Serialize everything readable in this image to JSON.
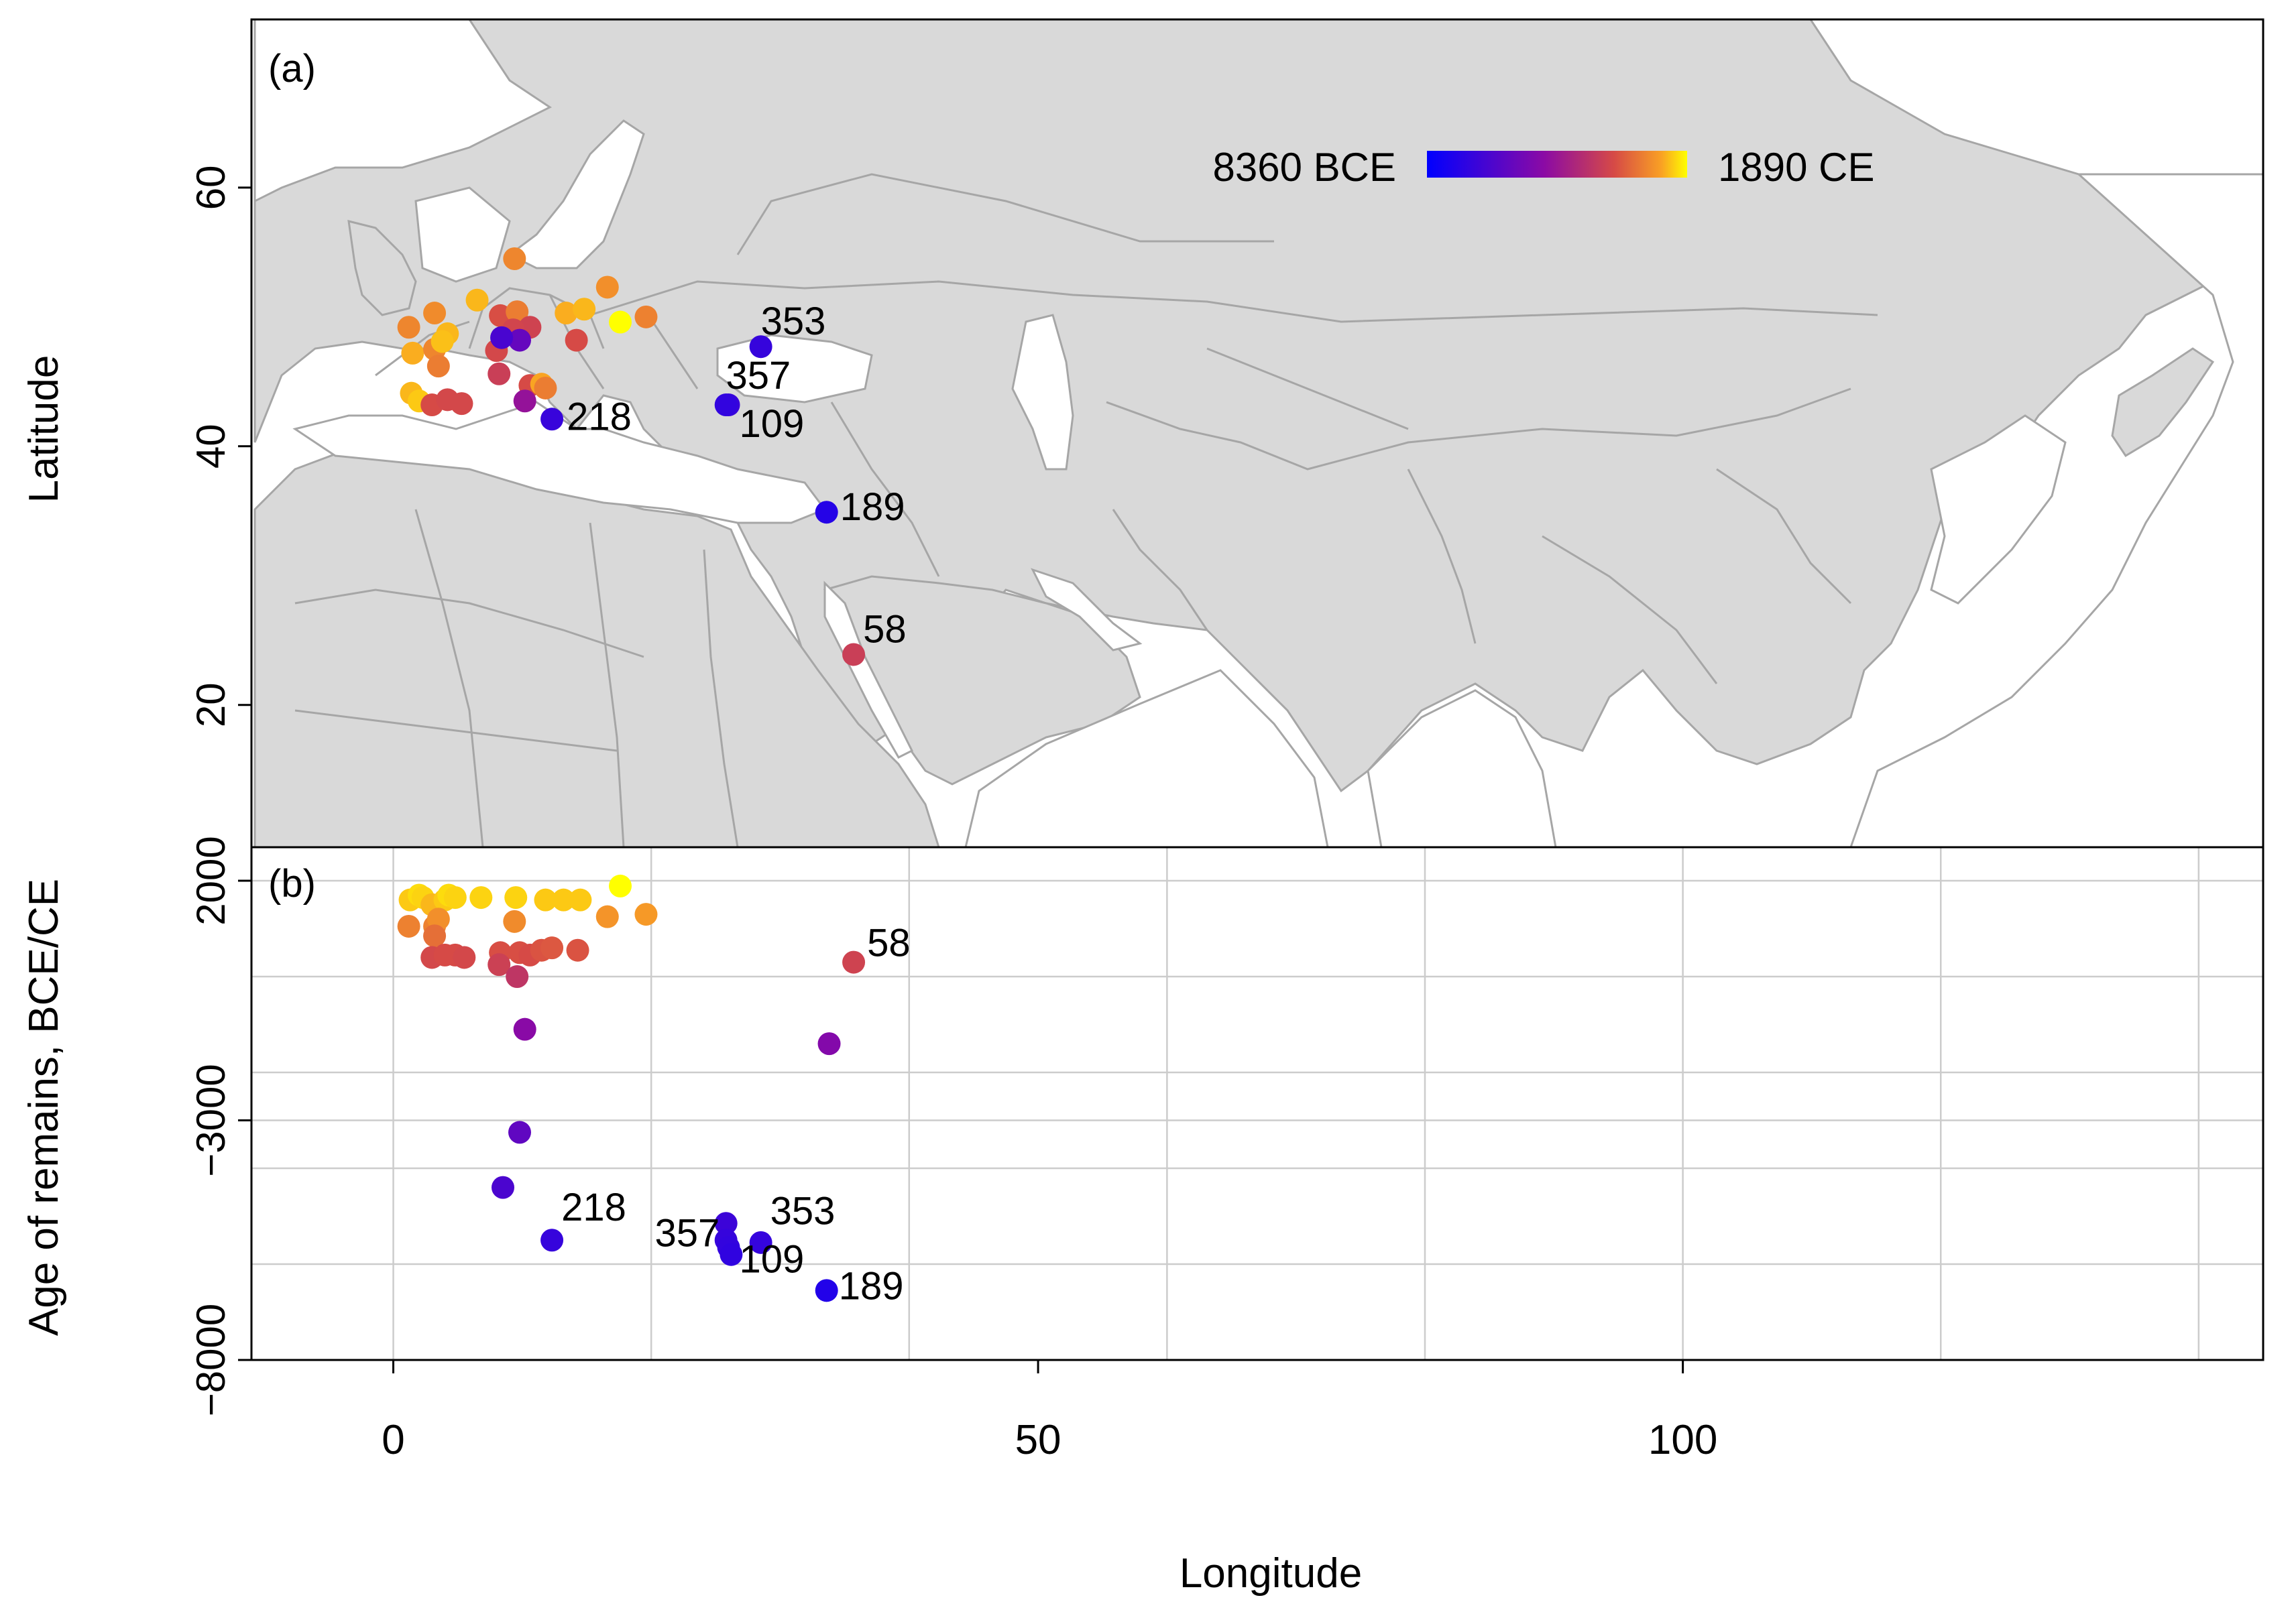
{
  "chart_data": [
    {
      "panel": "(a)",
      "type": "scatter",
      "subtype": "map",
      "ylabel": "Latitude",
      "y_ticks": [
        20,
        40,
        60
      ],
      "xlim": [
        -11,
        145
      ],
      "ylim": [
        9,
        73
      ],
      "color_legend": {
        "min_label": "8360 BCE",
        "max_label": "1890 CE",
        "colors": [
          "#0000ff",
          "#8b0aa5",
          "#d64a46",
          "#f9a024",
          "#ffff00"
        ]
      },
      "labels": [
        {
          "text": "353",
          "lon": 28.5,
          "lat": 47.7
        },
        {
          "text": "357",
          "lon": 26.0,
          "lat": 43.2
        },
        {
          "text": "109",
          "lon": 26.0,
          "lat": 43.2
        },
        {
          "text": "218",
          "lon": 12.3,
          "lat": 42.1
        },
        {
          "text": "189",
          "lon": 33.6,
          "lat": 34.9
        },
        {
          "text": "58",
          "lon": 35.7,
          "lat": 23.9
        }
      ],
      "points": [
        {
          "lon": 1.2,
          "lat": 49.2,
          "year": 1100
        },
        {
          "lon": 3.2,
          "lat": 50.3,
          "year": 1150
        },
        {
          "lon": 4.2,
          "lat": 48.7,
          "year": 1500
        },
        {
          "lon": 1.5,
          "lat": 47.2,
          "year": 1450
        },
        {
          "lon": 3.2,
          "lat": 47.5,
          "year": 1100
        },
        {
          "lon": 3.5,
          "lat": 46.2,
          "year": 1000
        },
        {
          "lon": 3.8,
          "lat": 48.1,
          "year": 1550
        },
        {
          "lon": 1.4,
          "lat": 44.1,
          "year": 1500
        },
        {
          "lon": 2.0,
          "lat": 43.5,
          "year": 1600
        },
        {
          "lon": 3.0,
          "lat": 43.2,
          "year": 450
        },
        {
          "lon": 4.2,
          "lat": 43.6,
          "year": 400
        },
        {
          "lon": 5.3,
          "lat": 43.3,
          "year": 400
        },
        {
          "lon": 6.5,
          "lat": 51.3,
          "year": 1500
        },
        {
          "lon": 9.4,
          "lat": 54.5,
          "year": 1100
        },
        {
          "lon": 8.3,
          "lat": 50.1,
          "year": 500
        },
        {
          "lon": 9.6,
          "lat": 50.4,
          "year": 1000
        },
        {
          "lon": 10.6,
          "lat": 49.2,
          "year": 300
        },
        {
          "lon": 9.3,
          "lat": 49.0,
          "year": 350
        },
        {
          "lon": 8.0,
          "lat": 47.4,
          "year": 400
        },
        {
          "lon": 8.2,
          "lat": 45.6,
          "year": 200
        },
        {
          "lon": 9.8,
          "lat": 48.2,
          "year": -3000
        },
        {
          "lon": 8.4,
          "lat": 48.4,
          "year": -4500
        },
        {
          "lon": 10.6,
          "lat": 44.7,
          "year": 450
        },
        {
          "lon": 11.5,
          "lat": 44.8,
          "year": 1400
        },
        {
          "lon": 10.2,
          "lat": 43.5,
          "year": -800
        },
        {
          "lon": 11.8,
          "lat": 44.5,
          "year": 1000
        },
        {
          "lon": 12.3,
          "lat": 42.1,
          "year": -5400
        },
        {
          "lon": 14.2,
          "lat": 48.2,
          "year": 450
        },
        {
          "lon": 13.4,
          "lat": 50.3,
          "year": 1450
        },
        {
          "lon": 14.8,
          "lat": 50.6,
          "year": 1500
        },
        {
          "lon": 16.6,
          "lat": 52.3,
          "year": 1200
        },
        {
          "lon": 17.6,
          "lat": 49.6,
          "year": 1890
        },
        {
          "lon": 19.6,
          "lat": 50.0,
          "year": 1050
        },
        {
          "lon": 28.5,
          "lat": 47.7,
          "year": -5500
        },
        {
          "lon": 26.0,
          "lat": 43.2,
          "year": -5350
        },
        {
          "lon": 25.8,
          "lat": 43.2,
          "year": -5700
        },
        {
          "lon": 33.6,
          "lat": 34.9,
          "year": -6400
        },
        {
          "lon": 35.7,
          "lat": 23.9,
          "year": 200
        }
      ]
    },
    {
      "panel": "(b)",
      "type": "scatter",
      "xlabel": "Longitude",
      "ylabel": "Age of remains, BCE/CE",
      "x_ticks": [
        0,
        50,
        100
      ],
      "y_ticks": [
        2000,
        -3000,
        -8000
      ],
      "y_tick_labels": [
        "2000",
        "−3000",
        "−8000"
      ],
      "xlim": [
        -11,
        145
      ],
      "ylim": [
        -8000,
        2700
      ],
      "grid": true,
      "labels": [
        {
          "text": "58",
          "lon": 35.7,
          "year": 200
        },
        {
          "text": "218",
          "lon": 12.3,
          "year": -5400
        },
        {
          "text": "353",
          "lon": 28.5,
          "year": -5500
        },
        {
          "text": "357",
          "lon": 26.0,
          "year": -5350
        },
        {
          "text": "109",
          "lon": 26.0,
          "year": -5700
        },
        {
          "text": "189",
          "lon": 33.6,
          "year": -6400
        }
      ],
      "points": [
        {
          "lon": 1.3,
          "year": 1600
        },
        {
          "lon": 2.0,
          "year": 1700
        },
        {
          "lon": 2.3,
          "year": 1650
        },
        {
          "lon": 3.0,
          "year": 1500
        },
        {
          "lon": 4.0,
          "year": 1600
        },
        {
          "lon": 4.3,
          "year": 1700
        },
        {
          "lon": 4.8,
          "year": 1650
        },
        {
          "lon": 6.8,
          "year": 1650
        },
        {
          "lon": 9.5,
          "year": 1650
        },
        {
          "lon": 11.8,
          "year": 1600
        },
        {
          "lon": 13.2,
          "year": 1600
        },
        {
          "lon": 14.5,
          "year": 1600
        },
        {
          "lon": 17.6,
          "year": 1890
        },
        {
          "lon": 1.2,
          "year": 1050
        },
        {
          "lon": 3.2,
          "year": 1050
        },
        {
          "lon": 3.5,
          "year": 1200
        },
        {
          "lon": 9.4,
          "year": 1150
        },
        {
          "lon": 16.6,
          "year": 1250
        },
        {
          "lon": 19.6,
          "year": 1300
        },
        {
          "lon": 3.2,
          "year": 850
        },
        {
          "lon": 3.0,
          "year": 400
        },
        {
          "lon": 4.0,
          "year": 450
        },
        {
          "lon": 4.8,
          "year": 450
        },
        {
          "lon": 5.5,
          "year": 400
        },
        {
          "lon": 8.3,
          "year": 500
        },
        {
          "lon": 9.8,
          "year": 500
        },
        {
          "lon": 10.6,
          "year": 450
        },
        {
          "lon": 11.5,
          "year": 550
        },
        {
          "lon": 12.3,
          "year": 600
        },
        {
          "lon": 14.3,
          "year": 550
        },
        {
          "lon": 8.2,
          "year": 250
        },
        {
          "lon": 9.6,
          "year": 0
        },
        {
          "lon": 35.7,
          "year": 300
        },
        {
          "lon": 10.2,
          "year": -1100
        },
        {
          "lon": 33.8,
          "year": -1400
        },
        {
          "lon": 9.8,
          "year": -3250
        },
        {
          "lon": 8.5,
          "year": -4400
        },
        {
          "lon": 12.3,
          "year": -5500
        },
        {
          "lon": 25.8,
          "year": -5150
        },
        {
          "lon": 25.8,
          "year": -5500
        },
        {
          "lon": 26.0,
          "year": -5650
        },
        {
          "lon": 26.2,
          "year": -5800
        },
        {
          "lon": 28.5,
          "year": -5550
        },
        {
          "lon": 33.6,
          "year": -6550
        }
      ]
    }
  ]
}
